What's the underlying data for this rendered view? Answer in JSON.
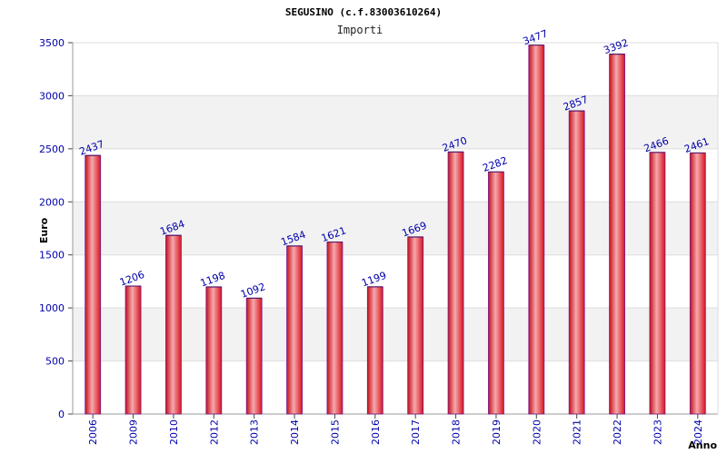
{
  "chart_data": {
    "type": "bar",
    "title": "SEGUSINO (c.f.83003610264)",
    "subtitle": "Importi",
    "xlabel": "Anno",
    "ylabel": "Euro",
    "ylim": [
      0,
      3500
    ],
    "yticks": [
      0,
      500,
      1000,
      1500,
      2000,
      2500,
      3000,
      3500
    ],
    "categories": [
      "2006",
      "2009",
      "2010",
      "2012",
      "2013",
      "2014",
      "2015",
      "2016",
      "2017",
      "2018",
      "2019",
      "2020",
      "2021",
      "2022",
      "2023",
      "2024"
    ],
    "values": [
      2437,
      1206,
      1684,
      1198,
      1092,
      1584,
      1621,
      1199,
      1669,
      2470,
      2282,
      3477,
      2857,
      3392,
      2466,
      2461
    ],
    "value_labels": [
      "2437",
      "1206",
      "1684",
      "1198",
      "1092",
      "1584",
      "1621",
      "1199",
      "1669",
      "2470",
      "2282",
      "3477",
      "2857",
      "3392",
      "2466",
      "2461"
    ],
    "grid": true,
    "colors": {
      "bar": "#e8202a",
      "bar_highlight": "#f5a0a4",
      "bar_edge": "#7a1a8a",
      "band": "#f2f2f2",
      "grid": "#dddddd",
      "axis_text": "#0000aa"
    }
  }
}
